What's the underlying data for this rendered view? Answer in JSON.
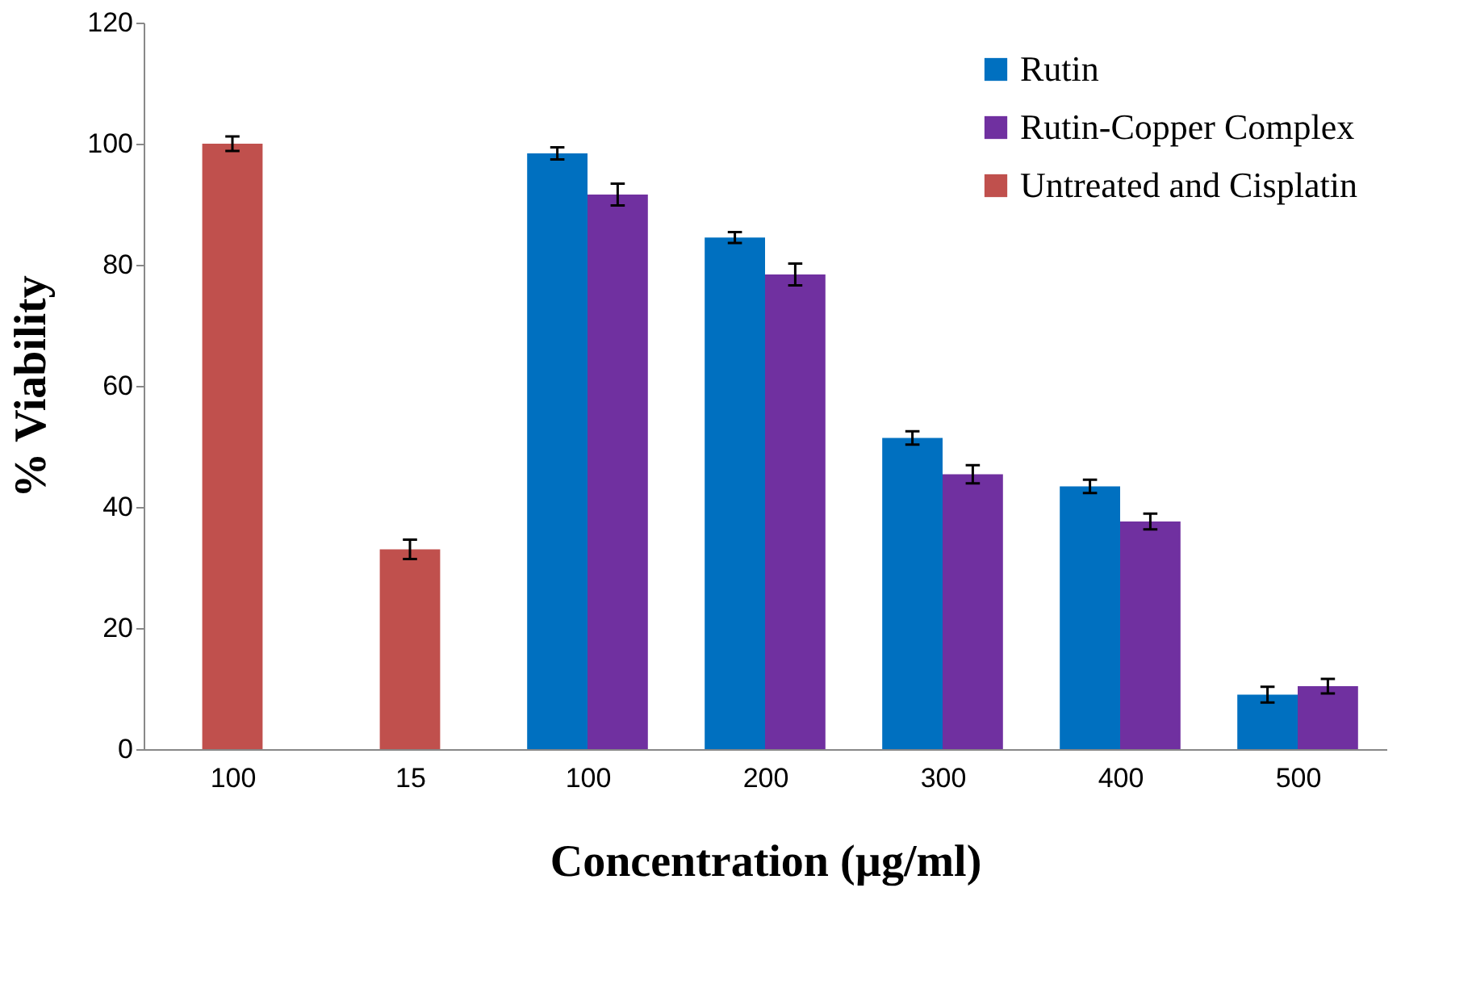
{
  "chart_data": {
    "type": "bar",
    "xlabel": "Concentration (µg/ml)",
    "ylabel": "% Viability",
    "categories": [
      "100",
      "15",
      "100",
      "200",
      "300",
      "400",
      "500"
    ],
    "series": [
      {
        "name": "Rutin",
        "color": "#0070c0",
        "values": [
          null,
          null,
          98.4,
          84.5,
          51.4,
          43.4,
          9.0
        ],
        "errors": [
          null,
          null,
          1.0,
          0.9,
          1.1,
          1.1,
          1.3
        ]
      },
      {
        "name": "Rutin-Copper Complex",
        "color": "#7030a0",
        "values": [
          null,
          null,
          91.6,
          78.4,
          45.4,
          37.6,
          10.4
        ],
        "errors": [
          null,
          null,
          1.8,
          1.8,
          1.5,
          1.3,
          1.2
        ]
      },
      {
        "name": "Untreated and Cisplatin",
        "color": "#c0504d",
        "values": [
          100,
          33.0,
          null,
          null,
          null,
          null,
          null
        ],
        "errors": [
          1.2,
          1.6,
          null,
          null,
          null,
          null,
          null
        ]
      }
    ],
    "ylim": [
      0,
      120
    ],
    "yticks": [
      0,
      20,
      40,
      60,
      80,
      100,
      120
    ],
    "grid": false,
    "legend": "top right"
  }
}
